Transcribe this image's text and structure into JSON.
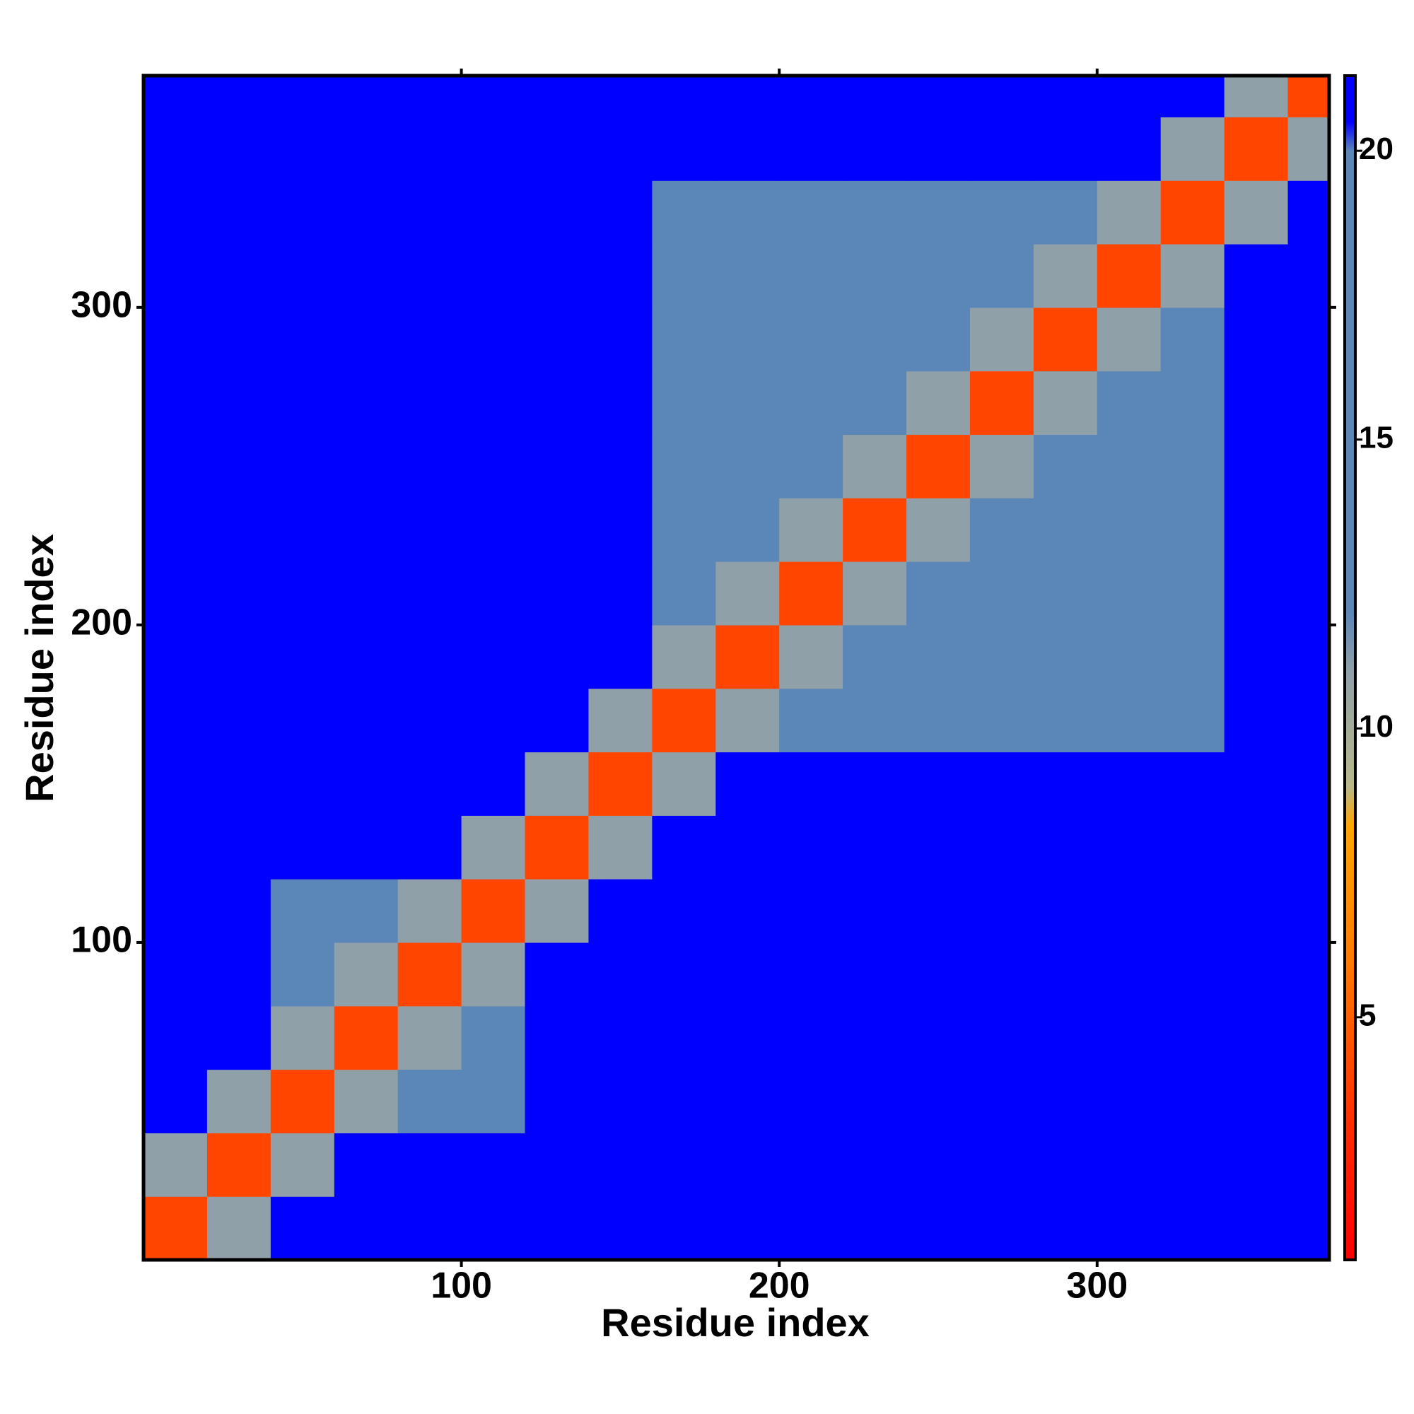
{
  "chart_data": {
    "type": "heatmap",
    "xlabel": "Residue index",
    "ylabel": "Residue index",
    "xbins": [
      0,
      20,
      40,
      60,
      80,
      100,
      120,
      140,
      160,
      180,
      200,
      220,
      240,
      260,
      280,
      300,
      320,
      340,
      360,
      373
    ],
    "ybins": [
      0,
      20,
      40,
      60,
      80,
      100,
      120,
      140,
      160,
      180,
      200,
      220,
      240,
      260,
      280,
      300,
      320,
      340,
      360,
      373
    ],
    "values": [
      [
        4,
        11,
        21,
        21,
        21,
        21,
        21,
        21,
        21,
        21,
        21,
        21,
        21,
        21,
        21,
        21,
        21,
        21,
        21
      ],
      [
        11,
        4,
        11,
        21,
        21,
        21,
        21,
        21,
        21,
        21,
        21,
        21,
        21,
        21,
        21,
        21,
        21,
        21,
        21
      ],
      [
        21,
        11,
        4,
        11,
        15,
        15,
        21,
        21,
        21,
        21,
        21,
        21,
        21,
        21,
        21,
        21,
        21,
        21,
        21
      ],
      [
        21,
        21,
        11,
        4,
        11,
        15,
        21,
        21,
        21,
        21,
        21,
        21,
        21,
        21,
        21,
        21,
        21,
        21,
        21
      ],
      [
        21,
        21,
        15,
        11,
        4,
        11,
        21,
        21,
        21,
        21,
        21,
        21,
        21,
        21,
        21,
        21,
        21,
        21,
        21
      ],
      [
        21,
        21,
        15,
        15,
        11,
        4,
        11,
        21,
        21,
        21,
        21,
        21,
        21,
        21,
        21,
        21,
        21,
        21,
        21
      ],
      [
        21,
        21,
        21,
        21,
        21,
        11,
        4,
        11,
        21,
        21,
        21,
        21,
        21,
        21,
        21,
        21,
        21,
        21,
        21
      ],
      [
        21,
        21,
        21,
        21,
        21,
        21,
        11,
        4,
        11,
        21,
        21,
        21,
        21,
        21,
        21,
        21,
        21,
        21,
        21
      ],
      [
        21,
        21,
        21,
        21,
        21,
        21,
        21,
        11,
        4,
        11,
        16,
        16,
        16,
        16,
        18,
        18,
        18,
        21,
        21
      ],
      [
        21,
        21,
        21,
        21,
        21,
        21,
        21,
        21,
        11,
        4,
        11,
        16,
        16,
        16,
        16,
        18,
        18,
        21,
        21
      ],
      [
        21,
        21,
        21,
        21,
        21,
        21,
        21,
        21,
        16,
        11,
        4,
        11,
        16,
        16,
        16,
        16,
        18,
        21,
        21
      ],
      [
        21,
        21,
        21,
        21,
        21,
        21,
        21,
        21,
        16,
        16,
        11,
        4,
        11,
        16,
        16,
        16,
        16,
        21,
        21
      ],
      [
        21,
        21,
        21,
        21,
        21,
        21,
        21,
        21,
        16,
        16,
        16,
        11,
        4,
        11,
        16,
        16,
        16,
        21,
        21
      ],
      [
        21,
        21,
        21,
        21,
        21,
        21,
        21,
        21,
        16,
        16,
        16,
        16,
        11,
        4,
        11,
        16,
        16,
        21,
        21
      ],
      [
        21,
        21,
        21,
        21,
        21,
        21,
        21,
        21,
        18,
        16,
        16,
        16,
        16,
        11,
        4,
        11,
        16,
        21,
        21
      ],
      [
        21,
        21,
        21,
        21,
        21,
        21,
        21,
        21,
        18,
        18,
        16,
        16,
        16,
        16,
        11,
        4,
        11,
        21,
        21
      ],
      [
        21,
        21,
        21,
        21,
        21,
        21,
        21,
        21,
        18,
        18,
        18,
        16,
        16,
        16,
        16,
        11,
        4,
        11,
        21
      ],
      [
        21,
        21,
        21,
        21,
        21,
        21,
        21,
        21,
        21,
        21,
        21,
        21,
        21,
        21,
        21,
        21,
        11,
        4,
        11
      ],
      [
        21,
        21,
        21,
        21,
        21,
        21,
        21,
        21,
        21,
        21,
        21,
        21,
        21,
        21,
        21,
        21,
        21,
        11,
        4
      ]
    ],
    "xlim": [
      0,
      373
    ],
    "ylim": [
      0,
      373
    ],
    "xticks": [
      100,
      200,
      300
    ],
    "yticks": [
      100,
      200,
      300
    ],
    "colorbar": {
      "lim": [
        0.8,
        21.3
      ],
      "ticks": [
        5,
        10,
        15,
        20
      ],
      "stops": [
        {
          "value": 0.8,
          "color": "#ff0000"
        },
        {
          "value": 3,
          "color": "#ff2a00"
        },
        {
          "value": 6,
          "color": "#ff7a00"
        },
        {
          "value": 8.3,
          "color": "#ffa500"
        },
        {
          "value": 9,
          "color": "#b8b888"
        },
        {
          "value": 11,
          "color": "#8fa0a8"
        },
        {
          "value": 12,
          "color": "#5b86b8"
        },
        {
          "value": 20,
          "color": "#5b86b8"
        },
        {
          "value": 20.5,
          "color": "#0000ff"
        },
        {
          "value": 21.3,
          "color": "#0000ff"
        }
      ]
    }
  }
}
